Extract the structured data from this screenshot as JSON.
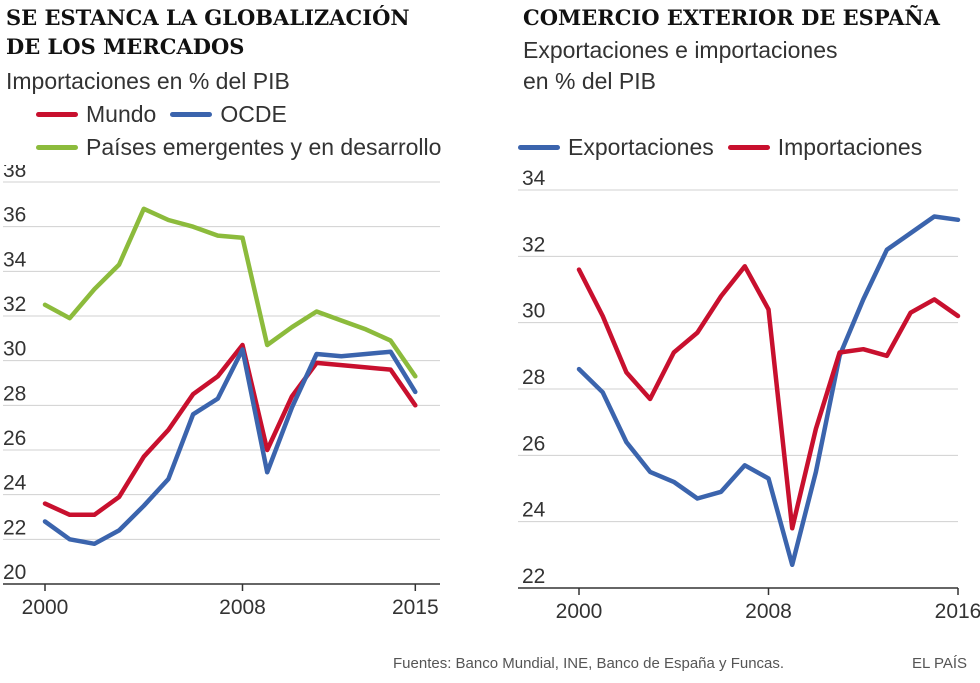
{
  "left": {
    "title_line1": "SE ESTANCA LA GLOBALIZACIÓN",
    "title_line2": "DE LOS MERCADOS",
    "subtitle": "Importaciones en % del PIB",
    "legend": {
      "mundo": "Mundo",
      "ocde": "OCDE",
      "emergentes": "Países emergentes y en desarrollo"
    }
  },
  "right": {
    "title": "COMERCIO EXTERIOR DE ESPAÑA",
    "subtitle_line1": "Exportaciones e importaciones",
    "subtitle_line2": "en % del PIB",
    "legend": {
      "exportaciones": "Exportaciones",
      "importaciones": "Importaciones"
    }
  },
  "footer": {
    "sources": "Fuentes: Banco Mundial, INE, Banco de España y Funcas.",
    "brand": "EL PAÍS"
  },
  "colors": {
    "red": "#c8102e",
    "blue": "#3b64ad",
    "green": "#8cbb3c",
    "grid": "#d0d0d0",
    "axis": "#333333"
  },
  "chart_data": [
    {
      "type": "line",
      "title": "SE ESTANCA LA GLOBALIZACIÓN DE LOS MERCADOS",
      "ylabel": "Importaciones en % del PIB",
      "xlim": [
        2000,
        2016
      ],
      "ylim": [
        20,
        38
      ],
      "yticks": [
        20,
        22,
        24,
        26,
        28,
        30,
        32,
        34,
        36,
        38
      ],
      "xticks": [
        2000,
        2008,
        2015
      ],
      "x": [
        2000,
        2001,
        2002,
        2003,
        2004,
        2005,
        2006,
        2007,
        2008,
        2009,
        2010,
        2011,
        2012,
        2013,
        2014,
        2015
      ],
      "series": [
        {
          "name": "Países emergentes y en desarrollo",
          "color": "#8cbb3c",
          "values": [
            32.5,
            31.9,
            33.2,
            34.3,
            36.8,
            36.3,
            36.0,
            35.6,
            35.5,
            30.7,
            31.5,
            32.2,
            31.8,
            31.4,
            30.9,
            29.3
          ]
        },
        {
          "name": "Mundo",
          "color": "#c8102e",
          "values": [
            23.6,
            23.1,
            23.1,
            23.9,
            25.7,
            26.9,
            28.5,
            29.3,
            30.7,
            26.0,
            28.4,
            29.9,
            29.8,
            29.7,
            29.6,
            28.0
          ]
        },
        {
          "name": "OCDE",
          "color": "#3b64ad",
          "values": [
            22.8,
            22.0,
            21.8,
            22.4,
            23.5,
            24.7,
            27.6,
            28.3,
            30.5,
            25.0,
            27.9,
            30.3,
            30.2,
            30.3,
            30.4,
            28.6
          ]
        }
      ]
    },
    {
      "type": "line",
      "title": "COMERCIO EXTERIOR DE ESPAÑA",
      "ylabel": "Exportaciones e importaciones en % del PIB",
      "xlim": [
        2000,
        2016
      ],
      "ylim": [
        22,
        34
      ],
      "yticks": [
        22,
        24,
        26,
        28,
        30,
        32,
        34
      ],
      "xticks": [
        2000,
        2008,
        2016
      ],
      "x": [
        2000,
        2001,
        2002,
        2003,
        2004,
        2005,
        2006,
        2007,
        2008,
        2009,
        2010,
        2011,
        2012,
        2013,
        2014,
        2015,
        2016
      ],
      "series": [
        {
          "name": "Exportaciones",
          "color": "#3b64ad",
          "values": [
            28.6,
            27.9,
            26.4,
            25.5,
            25.2,
            24.7,
            24.9,
            25.7,
            25.3,
            22.7,
            25.5,
            29.0,
            30.7,
            32.2,
            32.7,
            33.2,
            33.1
          ]
        },
        {
          "name": "Importaciones",
          "color": "#c8102e",
          "values": [
            31.6,
            30.2,
            28.5,
            27.7,
            29.1,
            29.7,
            30.8,
            31.7,
            30.4,
            23.8,
            26.8,
            29.1,
            29.2,
            29.0,
            30.3,
            30.7,
            30.2
          ]
        }
      ]
    }
  ]
}
